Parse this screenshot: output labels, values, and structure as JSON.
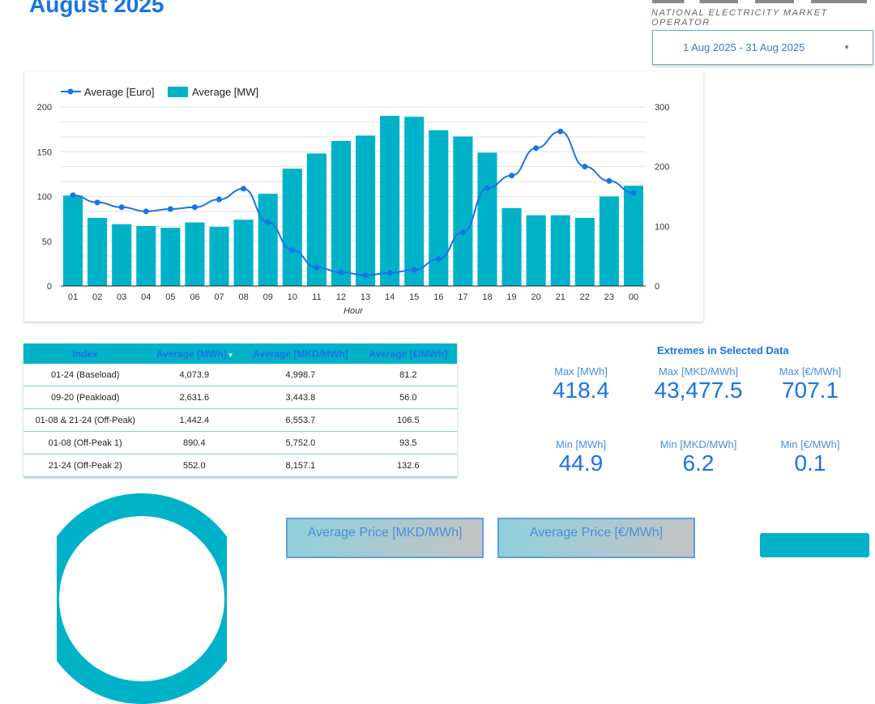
{
  "header": {
    "title": "August 2025",
    "logo_subtitle": "NATIONAL ELECTRICITY MARKET OPERATOR",
    "date_range": "1 Aug 2025 - 31 Aug 2025"
  },
  "colors": {
    "accent": "#1a73e8",
    "bar": "#00b2c8",
    "line": "#1a73e8"
  },
  "chart_data": {
    "type": "bar+line",
    "xlabel": "Hour",
    "categories": [
      "01",
      "02",
      "03",
      "04",
      "05",
      "06",
      "07",
      "08",
      "09",
      "10",
      "11",
      "12",
      "13",
      "14",
      "15",
      "16",
      "17",
      "18",
      "19",
      "20",
      "21",
      "22",
      "23",
      "00"
    ],
    "series": [
      {
        "name": "Average [MW]",
        "type": "bar",
        "axis": "left",
        "values": [
          101,
          76,
          69,
          67,
          65,
          71,
          66,
          74,
          103,
          131,
          148,
          162,
          168,
          190,
          189,
          174,
          167,
          149,
          87,
          79,
          79,
          76,
          100,
          112
        ]
      },
      {
        "name": "Average [Euro]",
        "type": "line",
        "axis": "right",
        "values": [
          152,
          140,
          132,
          125,
          129,
          132,
          145,
          163,
          107,
          60,
          31,
          23,
          18,
          22,
          27,
          45,
          90,
          164,
          185,
          231,
          259,
          200,
          176,
          156
        ]
      }
    ],
    "ylim_left": [
      0,
      200
    ],
    "yticks_left": [
      0,
      50,
      100,
      150,
      200
    ],
    "ylim_right": [
      0,
      300
    ],
    "yticks_right": [
      0,
      100,
      200,
      300
    ],
    "grid": true,
    "legend": "top-left"
  },
  "table": {
    "headers": [
      "Index",
      "Average [MWh]",
      "Average [MKD/MWh]",
      "Average [€/MWh]"
    ],
    "sort_icon": "caret-down-icon",
    "rows": [
      [
        "01-24 (Baseload)",
        "4,073.9",
        "4,998.7",
        "81.2"
      ],
      [
        "09-20 (Peakload)",
        "2,631.6",
        "3,443.8",
        "56.0"
      ],
      [
        "01-08 & 21-24 (Off-Peak)",
        "1,442.4",
        "6,553.7",
        "106.5"
      ],
      [
        "01-08 (Off-Peak 1)",
        "890.4",
        "5,752.0",
        "93.5"
      ],
      [
        "21-24 (Off-Peak 2)",
        "552.0",
        "8,157.1",
        "132.6"
      ]
    ]
  },
  "extremes": {
    "title": "Extremes in Selected Data",
    "items": [
      {
        "label": "Max [MWh]",
        "value": "418.4"
      },
      {
        "label": "Max [MKD/MWh]",
        "value": "43,477.5"
      },
      {
        "label": "Max [€/MWh]",
        "value": "707.1"
      },
      {
        "label": "Min [MWh]",
        "value": "44.9"
      },
      {
        "label": "Min [MKD/MWh]",
        "value": "6.2"
      },
      {
        "label": "Min [€/MWh]",
        "value": "0.1"
      }
    ]
  },
  "cards": [
    {
      "label": "Average Price [MKD/MWh]"
    },
    {
      "label": "Average Price [€/MWh]"
    }
  ]
}
